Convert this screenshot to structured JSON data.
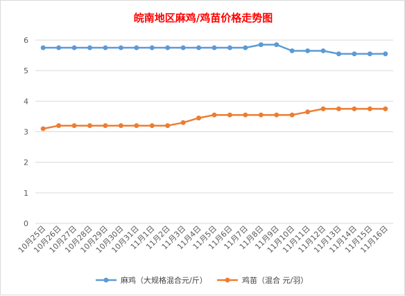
{
  "chart_data": {
    "type": "line",
    "title": "皖南地区麻鸡/鸡苗价格走势图",
    "xlabel": "",
    "ylabel": "",
    "ylim": [
      0,
      6
    ],
    "yticks": [
      0,
      1,
      2,
      3,
      4,
      5,
      6
    ],
    "grid": "horizontal",
    "legend_position": "bottom",
    "categories": [
      "10月25日",
      "10月26日",
      "10月27日",
      "10月28日",
      "10月29日",
      "10月30日",
      "10月31日",
      "11月1日",
      "11月2日",
      "11月3日",
      "11月4日",
      "11月5日",
      "11月6日",
      "11月7日",
      "11月8日",
      "11月9日",
      "11月10日",
      "11月11日",
      "11月12日",
      "11月13日",
      "11月14日",
      "11月15日",
      "11月16日"
    ],
    "series": [
      {
        "name": "麻鸡（大规格混合元/斤）",
        "color": "#5b9bd5",
        "values": [
          5.75,
          5.75,
          5.75,
          5.75,
          5.75,
          5.75,
          5.75,
          5.75,
          5.75,
          5.75,
          5.75,
          5.75,
          5.75,
          5.75,
          5.85,
          5.85,
          5.65,
          5.65,
          5.65,
          5.55,
          5.55,
          5.55,
          5.55
        ]
      },
      {
        "name": "鸡苗（混合 元/羽）",
        "color": "#ed7d31",
        "values": [
          3.1,
          3.2,
          3.2,
          3.2,
          3.2,
          3.2,
          3.2,
          3.2,
          3.2,
          3.3,
          3.45,
          3.55,
          3.55,
          3.55,
          3.55,
          3.55,
          3.55,
          3.65,
          3.75,
          3.75,
          3.75,
          3.75,
          3.75
        ]
      }
    ]
  }
}
